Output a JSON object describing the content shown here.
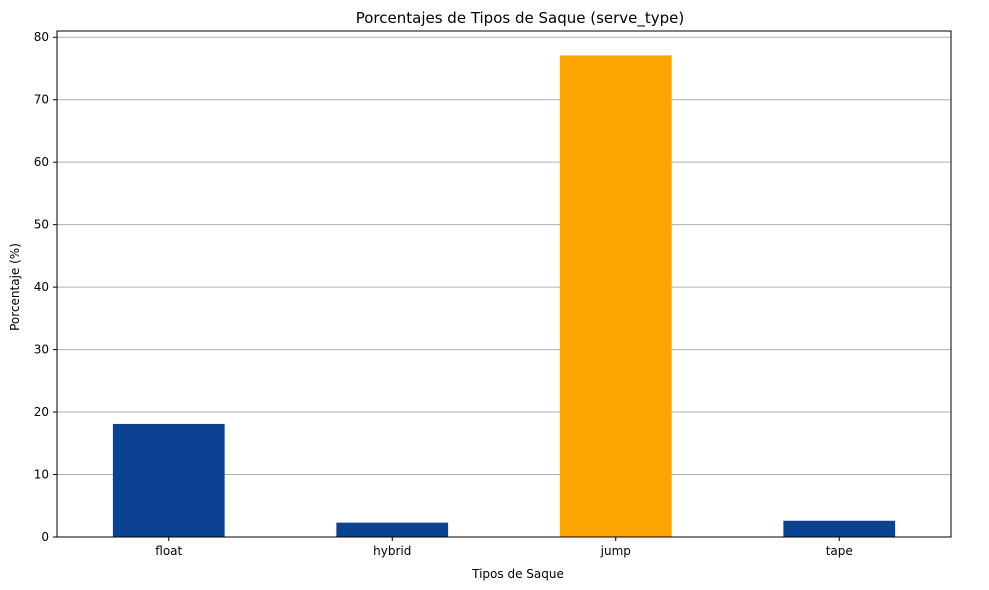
{
  "chart_data": {
    "type": "bar",
    "title": "Porcentajes de Tipos de Saque (serve_type)",
    "xlabel": "Tipos de Saque",
    "ylabel": "Porcentaje (%)",
    "categories": [
      "float",
      "hybrid",
      "jump",
      "tape"
    ],
    "values": [
      18.1,
      2.3,
      77.1,
      2.6
    ],
    "ylim": [
      0,
      81
    ],
    "yticks": [
      0,
      10,
      20,
      30,
      40,
      50,
      60,
      70,
      80
    ],
    "grid": "y",
    "colors": {
      "default_bar": "#0b4291",
      "highlight_bar": "#ffa500",
      "grid": "#b0b0b0",
      "axis": "#000000"
    },
    "highlight_category": "jump"
  }
}
